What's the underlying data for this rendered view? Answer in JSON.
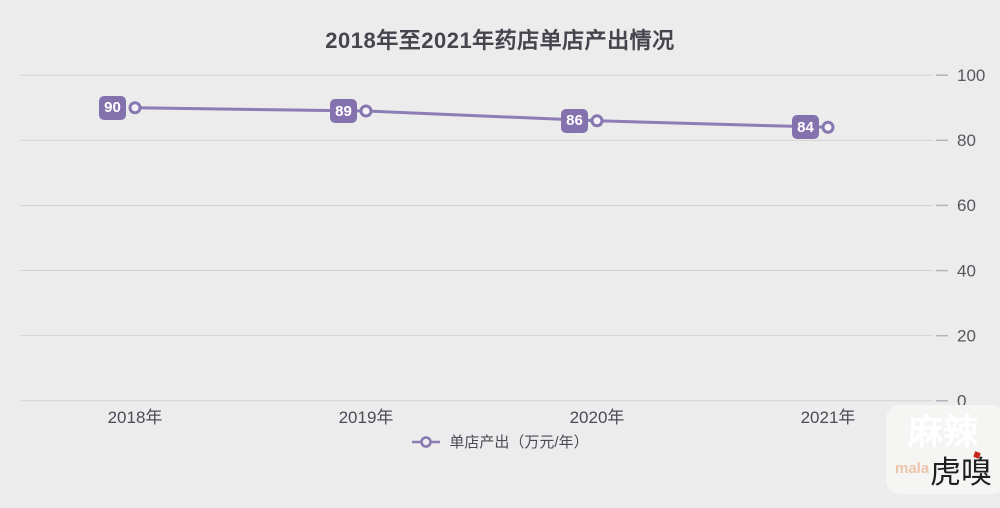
{
  "chart_data": {
    "type": "line",
    "title": "2018年至2021年药店单店产出情况",
    "categories": [
      "2018年",
      "2019年",
      "2020年",
      "2021年"
    ],
    "series": [
      {
        "name": "单店产出（万元/年）",
        "values": [
          90,
          89,
          86,
          84
        ]
      }
    ],
    "xlabel": "",
    "ylabel": "",
    "ylim": [
      0,
      100
    ],
    "yticks": [
      100,
      80,
      60,
      40,
      20,
      0
    ],
    "grid": true,
    "legend_position": "bottom",
    "data_labels_shown": true
  },
  "legend": {
    "label": "单店产出（万元/年）"
  },
  "watermark": {
    "brand_cn": "麻辣",
    "brand_pinyin": "mala",
    "brand_main": "虎嗅"
  },
  "colors": {
    "background": "#ececec",
    "line": "#8c7db6",
    "badge": "#8472ae",
    "gridline": "#d4d4d7",
    "title_text": "#45454e",
    "axis_text": "#4b4b57",
    "watermark_red": "#c5271c"
  }
}
